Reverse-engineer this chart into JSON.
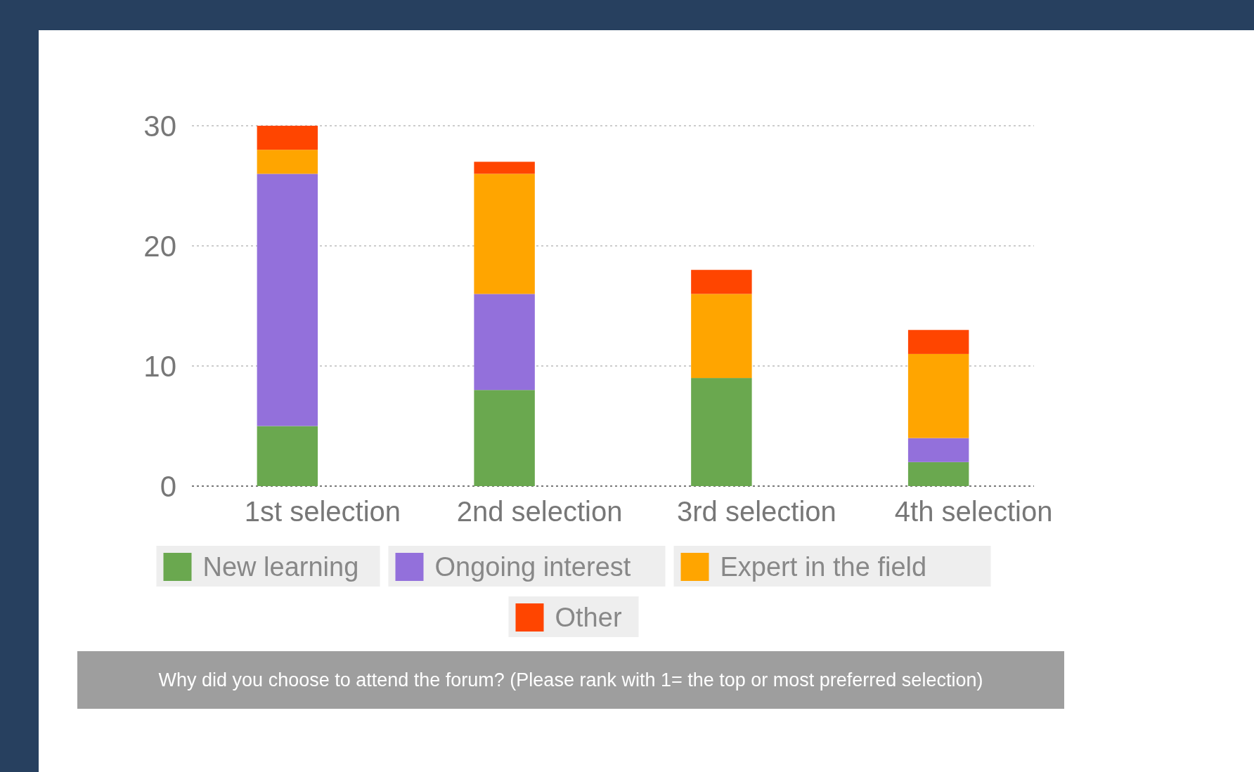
{
  "chart_data": {
    "type": "bar",
    "stacked": true,
    "categories": [
      "1st selection",
      "2nd selection",
      "3rd selection",
      "4th selection"
    ],
    "series": [
      {
        "name": "New learning",
        "color": "#6aa84f",
        "values": [
          5,
          8,
          9,
          2
        ]
      },
      {
        "name": "Ongoing interest",
        "color": "#9370db",
        "values": [
          21,
          8,
          0,
          2
        ]
      },
      {
        "name": "Expert in the field",
        "color": "#ffa500",
        "values": [
          2,
          10,
          7,
          7
        ]
      },
      {
        "name": "Other",
        "color": "#ff4500",
        "values": [
          2,
          1,
          2,
          2
        ]
      }
    ],
    "ylim": [
      0,
      30
    ],
    "yticks": [
      0,
      10,
      20,
      30
    ],
    "grid": "y",
    "legend": "bottom",
    "annotations": [
      "Why did you choose to attend the forum? (Please rank with 1= the top or most preferred selection)"
    ]
  }
}
